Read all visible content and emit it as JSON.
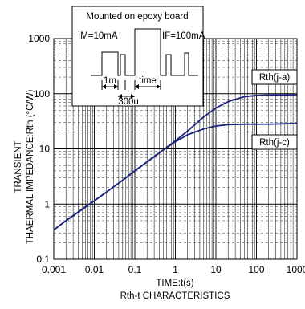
{
  "chart_data": {
    "type": "line",
    "title": "Rth-t CHARACTERISTICS",
    "xlabel": "TIME:t(s)",
    "ylabel_line1": "TRANSIENT",
    "ylabel_line2": "THAERMAL IMPEDANCE:Rth (°C/W)",
    "xscale": "log",
    "yscale": "log",
    "xlim": [
      0.001,
      1000
    ],
    "ylim": [
      0.1,
      1000
    ],
    "x_ticks": [
      "0.001",
      "0.01",
      "0.1",
      "1",
      "10",
      "100",
      "1000"
    ],
    "y_ticks": [
      "0.1",
      "1",
      "10",
      "100",
      "1000"
    ],
    "grid": true,
    "line_color": "#1a237e",
    "series": [
      {
        "name": "Rth(j-a)",
        "points": [
          [
            0.001,
            0.34
          ],
          [
            0.002,
            0.5
          ],
          [
            0.005,
            0.8
          ],
          [
            0.01,
            1.15
          ],
          [
            0.02,
            1.65
          ],
          [
            0.05,
            2.7
          ],
          [
            0.1,
            4.0
          ],
          [
            0.2,
            5.8
          ],
          [
            0.5,
            9.5
          ],
          [
            1,
            14
          ],
          [
            2,
            21
          ],
          [
            5,
            38
          ],
          [
            10,
            55
          ],
          [
            20,
            72
          ],
          [
            50,
            88
          ],
          [
            100,
            93
          ],
          [
            200,
            95
          ],
          [
            500,
            95
          ],
          [
            1000,
            95
          ]
        ]
      },
      {
        "name": "Rth(j-c)",
        "points": [
          [
            0.001,
            0.34
          ],
          [
            0.002,
            0.5
          ],
          [
            0.005,
            0.8
          ],
          [
            0.01,
            1.15
          ],
          [
            0.02,
            1.65
          ],
          [
            0.05,
            2.7
          ],
          [
            0.1,
            4.0
          ],
          [
            0.2,
            5.8
          ],
          [
            0.5,
            9.5
          ],
          [
            1,
            13.5
          ],
          [
            2,
            18
          ],
          [
            5,
            23
          ],
          [
            10,
            26
          ],
          [
            20,
            27.5
          ],
          [
            50,
            28
          ],
          [
            100,
            28
          ],
          [
            200,
            28
          ],
          [
            500,
            28.5
          ],
          [
            1000,
            29
          ]
        ]
      }
    ],
    "inset": {
      "title": "Mounted on epoxy board",
      "im_label": "IM=10mA",
      "if_label": "IF=100mA",
      "dim_1m": "1m",
      "dim_time": "time",
      "dim_300u": "300u"
    }
  }
}
